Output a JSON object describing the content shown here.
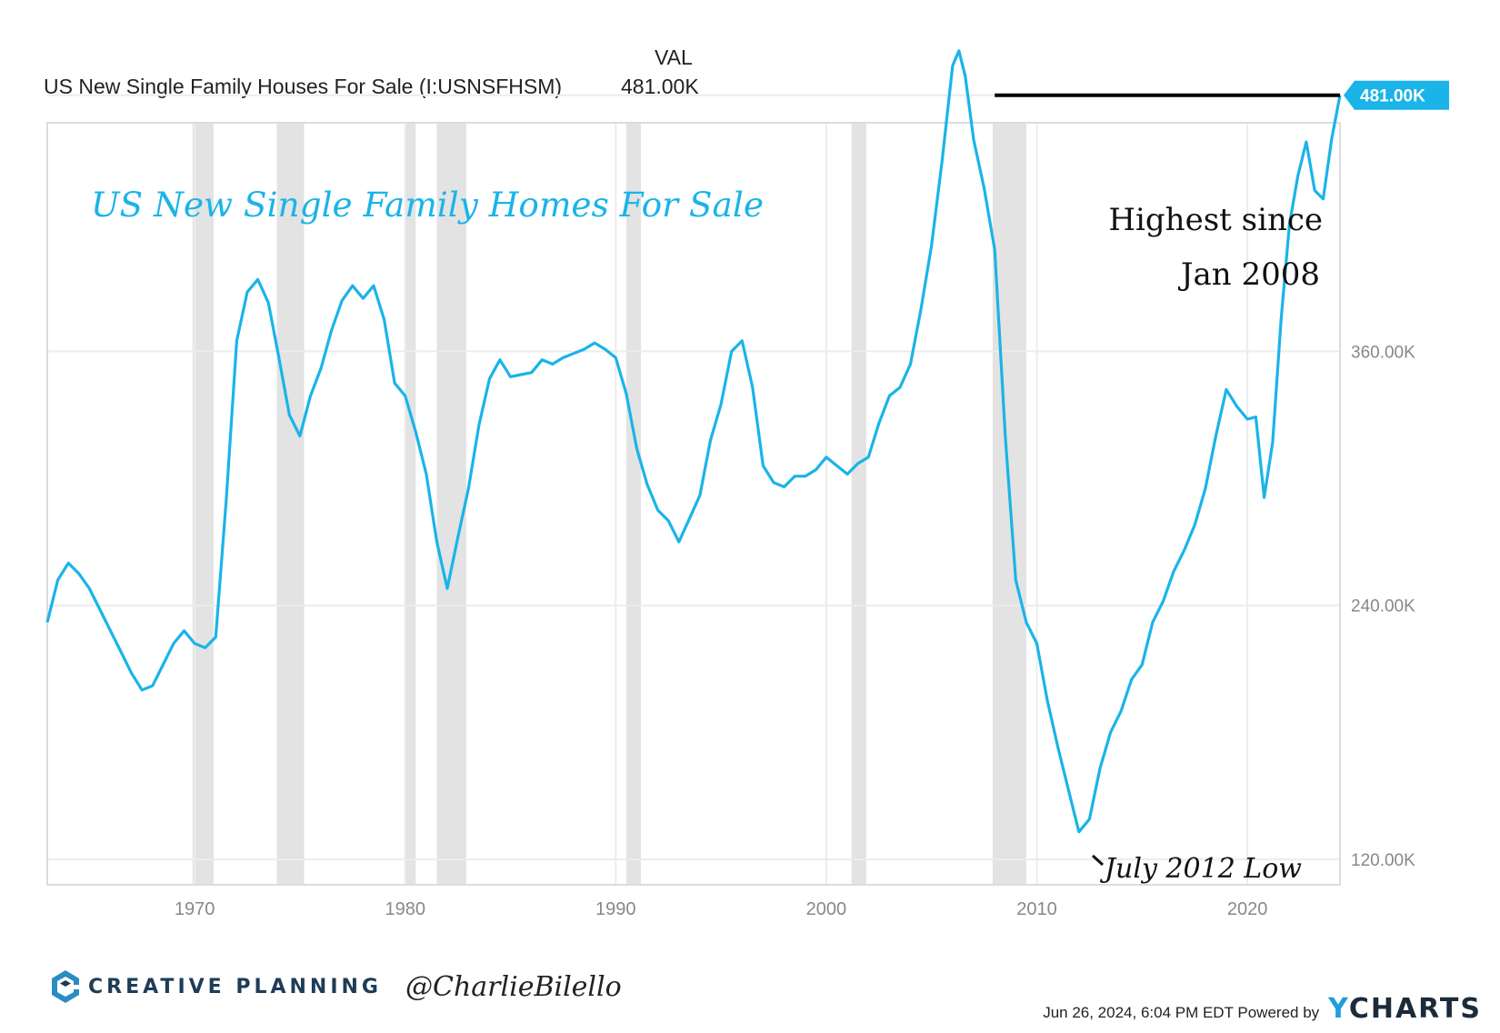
{
  "header": {
    "column_label": "VAL",
    "series_name": "US New Single Family Houses For Sale (I:USNSFHSM)",
    "series_value": "481.00K"
  },
  "chart_data": {
    "type": "line",
    "title": "US New Single Family Homes For Sale",
    "xlim": [
      1963.0,
      2024.4
    ],
    "ylim": [
      108,
      468
    ],
    "y_ticks": [
      120,
      240,
      360
    ],
    "y_tick_labels": [
      "120.00K",
      "240.00K",
      "360.00K"
    ],
    "x_ticks": [
      1970,
      1980,
      1990,
      2000,
      2010,
      2020
    ],
    "x_tick_labels": [
      "1970",
      "1980",
      "1990",
      "2000",
      "2010",
      "2020"
    ],
    "last_value_label": "481.00K",
    "last_value": 481,
    "recessions": [
      [
        1969.9,
        1970.9
      ],
      [
        1973.9,
        1975.2
      ],
      [
        1980.0,
        1980.5
      ],
      [
        1981.5,
        1982.9
      ],
      [
        1990.5,
        1991.2
      ],
      [
        2001.2,
        2001.9
      ],
      [
        2007.9,
        2009.5
      ]
    ],
    "reference_line": {
      "y": 481,
      "x_start": 2008.0,
      "x_end": 2024.4
    },
    "annotations": {
      "highest_line1": "Highest  since",
      "highest_line2": "Jan 2008",
      "low_label": "July 2012 Low"
    },
    "series": [
      {
        "name": "US New Single Family Houses For Sale",
        "color": "#1ab4e8",
        "x": [
          1963.0,
          1963.5,
          1964.0,
          1964.5,
          1965.0,
          1965.5,
          1966.0,
          1966.5,
          1967.0,
          1967.5,
          1968.0,
          1968.5,
          1969.0,
          1969.5,
          1970.0,
          1970.5,
          1971.0,
          1971.5,
          1972.0,
          1972.5,
          1973.0,
          1973.5,
          1974.0,
          1974.5,
          1975.0,
          1975.5,
          1976.0,
          1976.5,
          1977.0,
          1977.5,
          1978.0,
          1978.5,
          1979.0,
          1979.5,
          1980.0,
          1980.5,
          1981.0,
          1981.5,
          1982.0,
          1982.5,
          1983.0,
          1983.5,
          1984.0,
          1984.5,
          1985.0,
          1985.5,
          1986.0,
          1986.5,
          1987.0,
          1987.5,
          1988.0,
          1988.5,
          1989.0,
          1989.5,
          1990.0,
          1990.5,
          1991.0,
          1991.5,
          1992.0,
          1992.5,
          1993.0,
          1993.5,
          1994.0,
          1994.5,
          1995.0,
          1995.5,
          1996.0,
          1996.5,
          1997.0,
          1997.5,
          1998.0,
          1998.5,
          1999.0,
          1999.5,
          2000.0,
          2000.5,
          2001.0,
          2001.5,
          2002.0,
          2002.5,
          2003.0,
          2003.5,
          2004.0,
          2004.5,
          2005.0,
          2005.5,
          2006.0,
          2006.3,
          2006.6,
          2007.0,
          2007.5,
          2008.0,
          2008.5,
          2009.0,
          2009.5,
          2010.0,
          2010.5,
          2011.0,
          2011.5,
          2012.0,
          2012.5,
          2013.0,
          2013.5,
          2014.0,
          2014.5,
          2015.0,
          2015.5,
          2016.0,
          2016.5,
          2017.0,
          2017.5,
          2018.0,
          2018.5,
          2019.0,
          2019.5,
          2020.0,
          2020.4,
          2020.8,
          2021.2,
          2021.6,
          2022.0,
          2022.4,
          2022.8,
          2023.2,
          2023.6,
          2024.0,
          2024.4
        ],
        "y": [
          232,
          252,
          260,
          255,
          248,
          238,
          228,
          218,
          208,
          200,
          202,
          212,
          222,
          228,
          222,
          220,
          225,
          290,
          365,
          388,
          394,
          383,
          357,
          330,
          320,
          339,
          352,
          370,
          384,
          391,
          385,
          391,
          375,
          345,
          339,
          322,
          302,
          270,
          248,
          272,
          295,
          325,
          347,
          356,
          348,
          349,
          350,
          356,
          354,
          357,
          359,
          361,
          364,
          361,
          357,
          340,
          314,
          297,
          285,
          280,
          270,
          281,
          292,
          318,
          335,
          360,
          365,
          343,
          306,
          298,
          296,
          301,
          301,
          304,
          310,
          306,
          302,
          307,
          310,
          326,
          339,
          343,
          354,
          380,
          410,
          450,
          495,
          502,
          490,
          460,
          437,
          408,
          320,
          252,
          232,
          222,
          195,
          173,
          153,
          133,
          139,
          163,
          180,
          190,
          205,
          212,
          232,
          242,
          256,
          266,
          278,
          295,
          320,
          342,
          334,
          328,
          329,
          291,
          317,
          375,
          420,
          443,
          459,
          436,
          432,
          460,
          481
        ]
      }
    ]
  },
  "footer": {
    "brand": "CREATIVE PLANNING",
    "handle": "@CharlieBilello",
    "timestamp": "Jun 26, 2024, 6:04 PM EDT Powered by",
    "ycharts_y": "Y",
    "ycharts_rest": "CHARTS"
  },
  "colors": {
    "line": "#1ab4e8",
    "recession": "#e3e3e3",
    "grid": "#ececec",
    "label_box": "#1ab4e8",
    "tick_text": "#888888",
    "brand": "#1d3c57"
  }
}
